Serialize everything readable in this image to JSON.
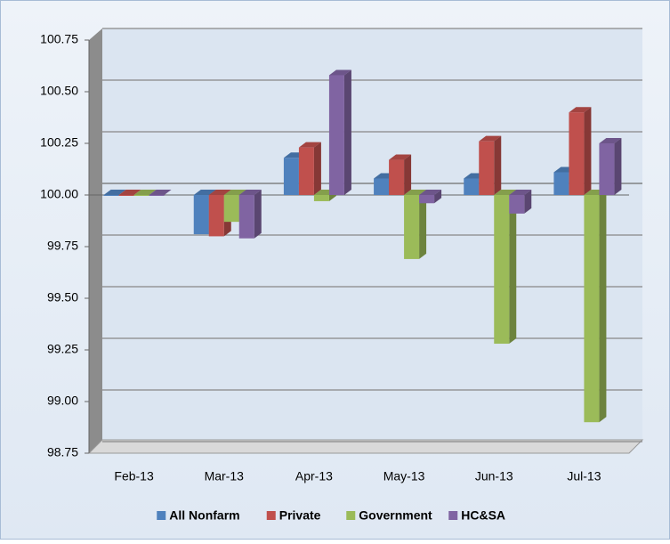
{
  "chart_data": {
    "type": "bar",
    "categories": [
      "Feb-13",
      "Mar-13",
      "Apr-13",
      "May-13",
      "Jun-13",
      "Jul-13"
    ],
    "series": [
      {
        "name": "All Nonfarm",
        "color": "#4f81bd",
        "values": [
          100.0,
          99.81,
          100.18,
          100.08,
          100.08,
          100.11
        ]
      },
      {
        "name": "Private",
        "color": "#c0504d",
        "values": [
          100.0,
          99.8,
          100.23,
          100.17,
          100.26,
          100.4
        ]
      },
      {
        "name": "Government",
        "color": "#9bbb59",
        "values": [
          100.0,
          99.87,
          99.97,
          99.69,
          99.28,
          98.9
        ]
      },
      {
        "name": "HC&SA",
        "color": "#8064a2",
        "values": [
          100.0,
          99.79,
          100.58,
          99.96,
          99.91,
          100.25
        ]
      }
    ],
    "ylim": [
      98.75,
      100.75
    ],
    "yticks": [
      98.75,
      {
        "value": 99,
        "label": "99.00"
      },
      99.25,
      {
        "value": 99.5,
        "label": "99.50"
      },
      99.75,
      {
        "value": 100,
        "label": "100.00"
      },
      100.25,
      {
        "value": 100.5,
        "label": "100.50"
      },
      100.75
    ],
    "bar_base": 100,
    "grid": true,
    "legend": "bottom"
  }
}
